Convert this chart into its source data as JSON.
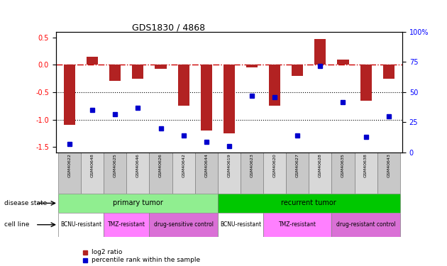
{
  "title": "GDS1830 / 4868",
  "samples": [
    "GSM40622",
    "GSM40648",
    "GSM40625",
    "GSM40646",
    "GSM40626",
    "GSM40642",
    "GSM40644",
    "GSM40619",
    "GSM40623",
    "GSM40620",
    "GSM40627",
    "GSM40628",
    "GSM40635",
    "GSM40638",
    "GSM40643"
  ],
  "log2_ratio": [
    -1.1,
    0.15,
    -0.3,
    -0.25,
    -0.08,
    -0.75,
    -1.2,
    -1.25,
    -0.05,
    -0.75,
    -0.2,
    0.47,
    0.1,
    -0.65,
    -0.25
  ],
  "percentile_rank": [
    7,
    35,
    32,
    37,
    20,
    14,
    9,
    5,
    47,
    46,
    14,
    72,
    42,
    13,
    30
  ],
  "bar_color": "#b22222",
  "dot_color": "#0000cd",
  "dashed_line_color": "#cc0000",
  "dot_line_color": "black",
  "left_ylim": [
    -1.6,
    0.6
  ],
  "right_ylim": [
    0,
    100
  ],
  "left_yticks": [
    -1.5,
    -1.0,
    -0.5,
    0.0,
    0.5
  ],
  "right_yticks": [
    0,
    25,
    50,
    75,
    100
  ],
  "disease_state_groups": [
    {
      "label": "primary tumor",
      "start": 0,
      "end": 7,
      "color": "#90ee90"
    },
    {
      "label": "recurrent tumor",
      "start": 7,
      "end": 15,
      "color": "#00c800"
    }
  ],
  "cell_line_groups": [
    {
      "label": "BCNU-resistant",
      "start": 0,
      "end": 2,
      "color": "#ffffff"
    },
    {
      "label": "TMZ-resistant",
      "start": 2,
      "end": 4,
      "color": "#ff80ff"
    },
    {
      "label": "drug-sensitive control",
      "start": 4,
      "end": 7,
      "color": "#da70d6"
    },
    {
      "label": "BCNU-resistant",
      "start": 7,
      "end": 9,
      "color": "#ffffff"
    },
    {
      "label": "TMZ-resistant",
      "start": 9,
      "end": 12,
      "color": "#ff80ff"
    },
    {
      "label": "drug-resistant control",
      "start": 12,
      "end": 15,
      "color": "#da70d6"
    }
  ],
  "legend_items": [
    {
      "label": "log2 ratio",
      "color": "#b22222",
      "marker": "s"
    },
    {
      "label": "percentile rank within the sample",
      "color": "#0000cd",
      "marker": "s"
    }
  ]
}
